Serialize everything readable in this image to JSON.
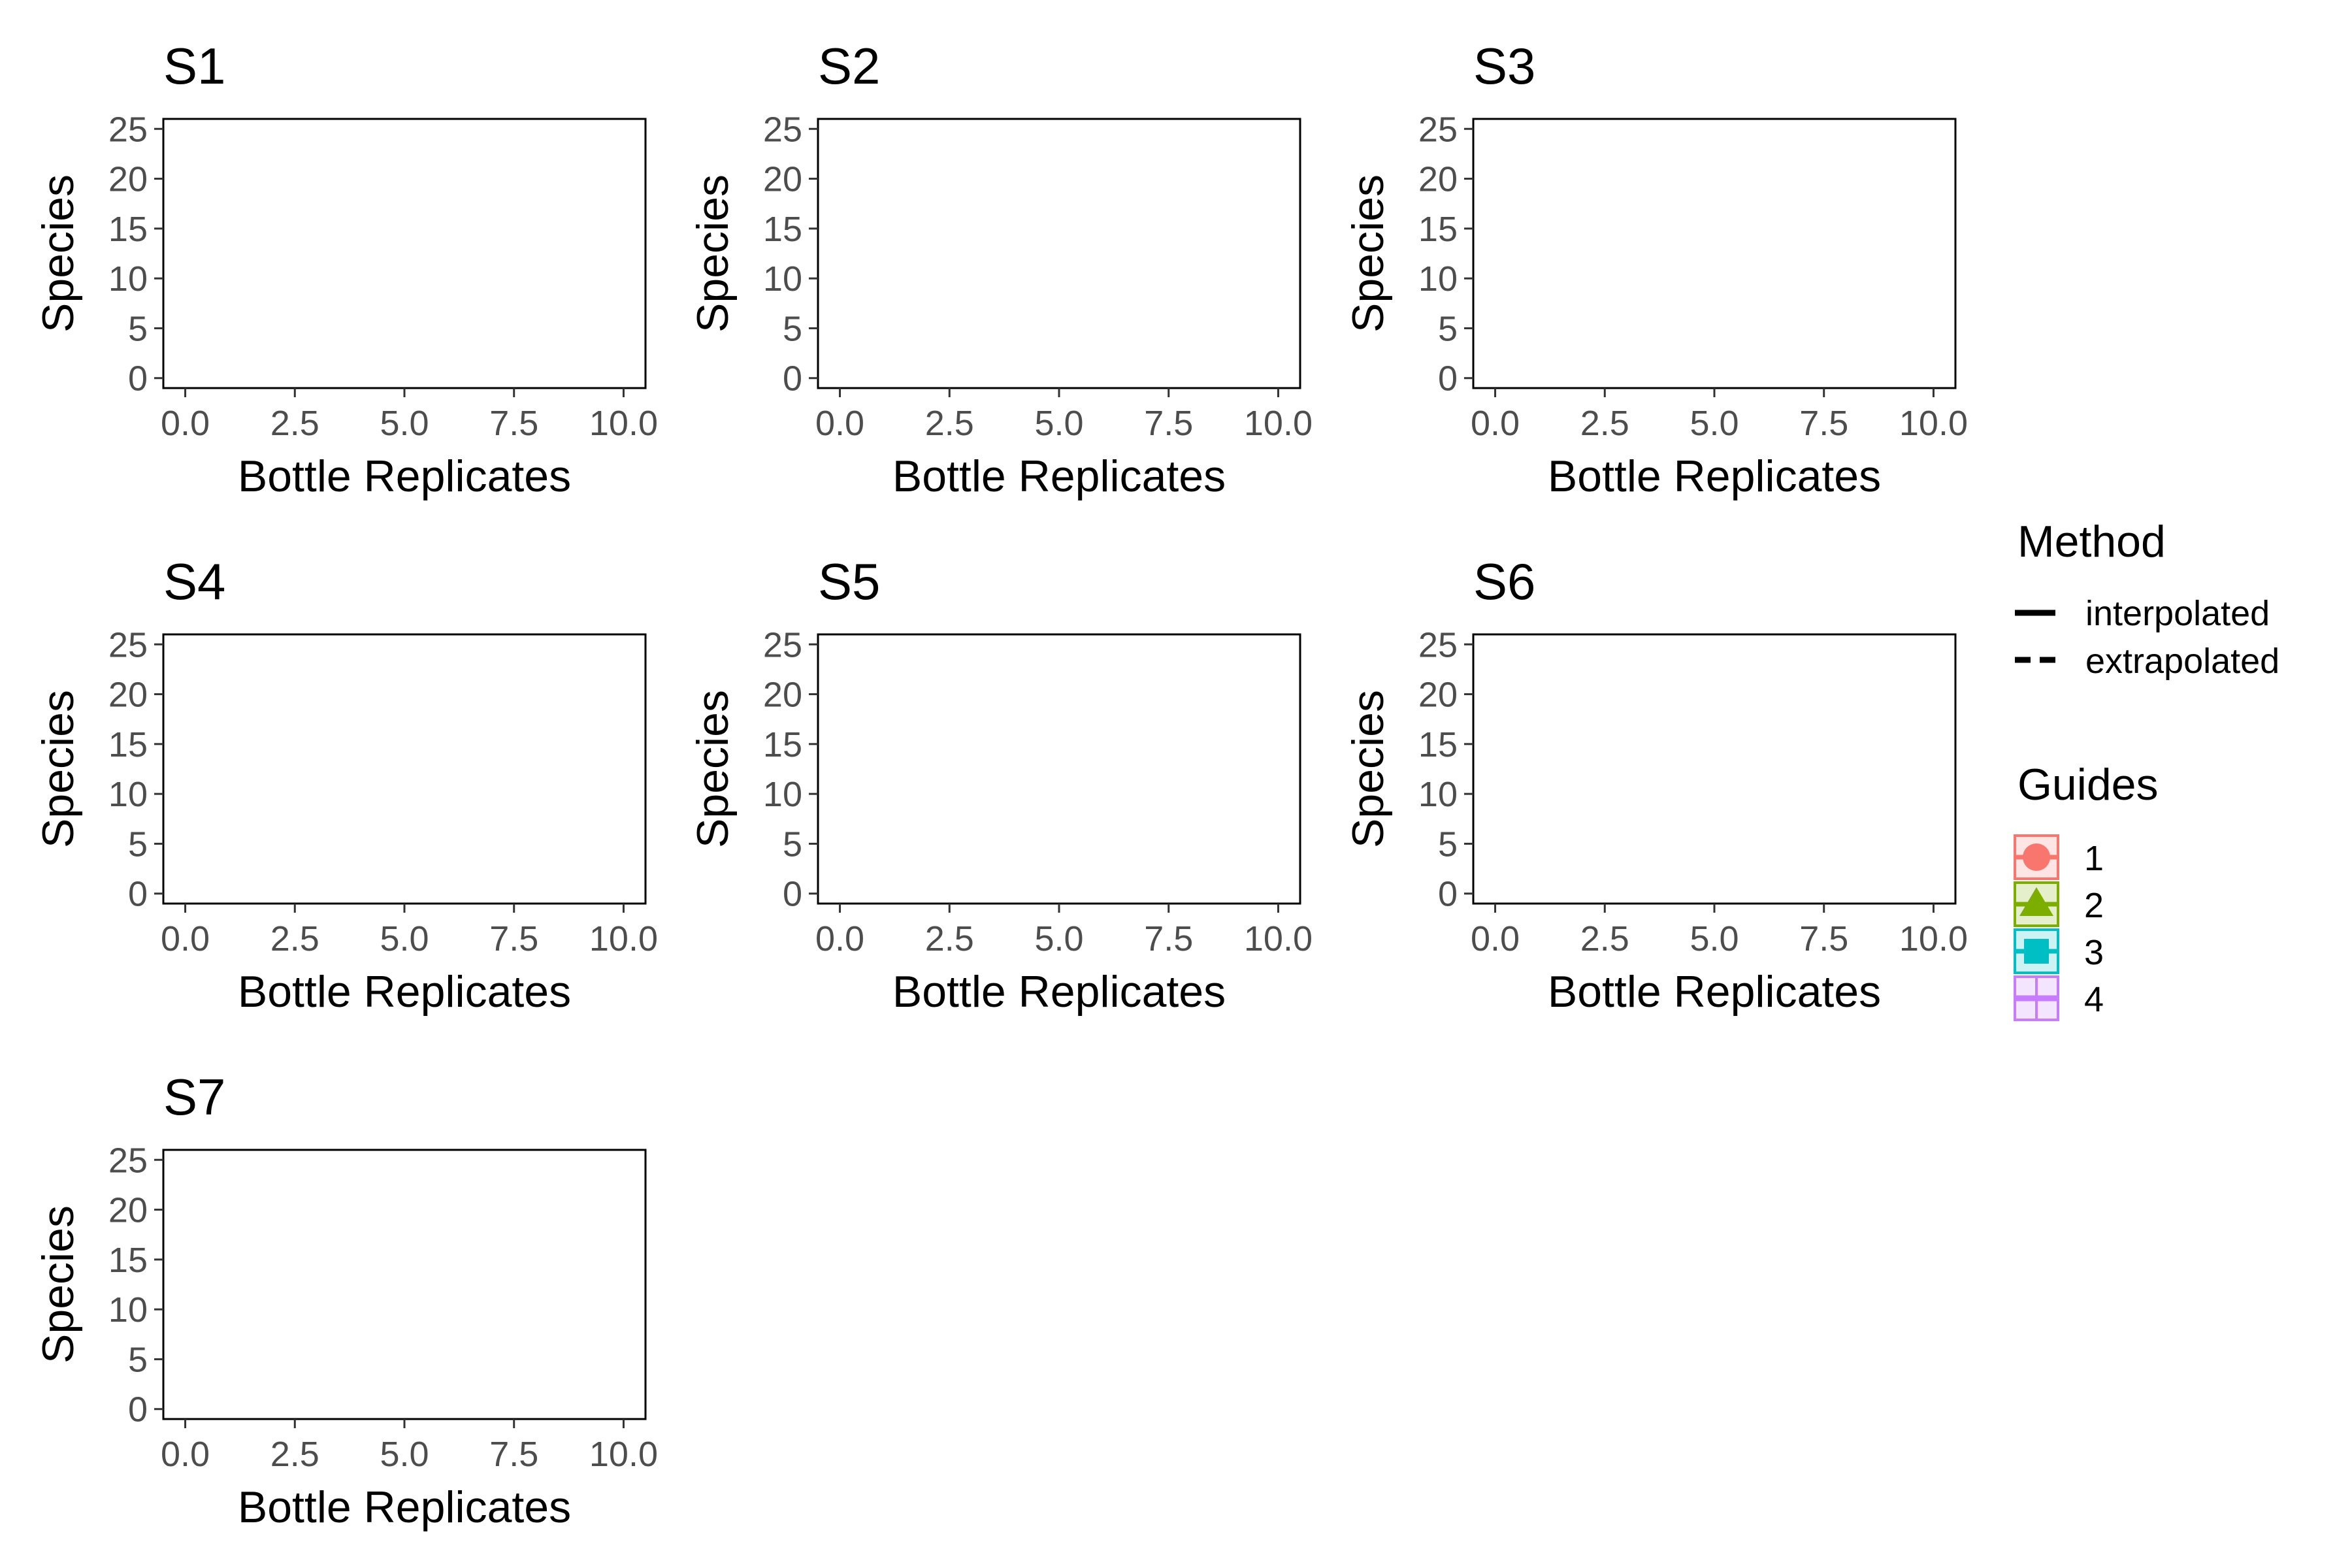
{
  "chart_data": {
    "type": "line",
    "facets": [
      {
        "title": "S1",
        "xlabel": "Bottle Replicates",
        "ylabel": "Species",
        "xlim": [
          -0.5,
          10.5
        ],
        "ylim": [
          -1,
          26
        ],
        "xticks": [
          "0.0",
          "2.5",
          "5.0",
          "7.5",
          "10.0"
        ],
        "yticks": [
          "0",
          "5",
          "10",
          "15",
          "20",
          "25"
        ],
        "series": []
      },
      {
        "title": "S2",
        "xlabel": "Bottle Replicates",
        "ylabel": "Species",
        "xlim": [
          -0.5,
          10.5
        ],
        "ylim": [
          -1,
          26
        ],
        "xticks": [
          "0.0",
          "2.5",
          "5.0",
          "7.5",
          "10.0"
        ],
        "yticks": [
          "0",
          "5",
          "10",
          "15",
          "20",
          "25"
        ],
        "series": []
      },
      {
        "title": "S3",
        "xlabel": "Bottle Replicates",
        "ylabel": "Species",
        "xlim": [
          -0.5,
          10.5
        ],
        "ylim": [
          -1,
          26
        ],
        "xticks": [
          "0.0",
          "2.5",
          "5.0",
          "7.5",
          "10.0"
        ],
        "yticks": [
          "0",
          "5",
          "10",
          "15",
          "20",
          "25"
        ],
        "series": []
      },
      {
        "title": "S4",
        "xlabel": "Bottle Replicates",
        "ylabel": "Species",
        "xlim": [
          -0.5,
          10.5
        ],
        "ylim": [
          -1,
          26
        ],
        "xticks": [
          "0.0",
          "2.5",
          "5.0",
          "7.5",
          "10.0"
        ],
        "yticks": [
          "0",
          "5",
          "10",
          "15",
          "20",
          "25"
        ],
        "series": []
      },
      {
        "title": "S5",
        "xlabel": "Bottle Replicates",
        "ylabel": "Species",
        "xlim": [
          -0.5,
          10.5
        ],
        "ylim": [
          -1,
          26
        ],
        "xticks": [
          "0.0",
          "2.5",
          "5.0",
          "7.5",
          "10.0"
        ],
        "yticks": [
          "0",
          "5",
          "10",
          "15",
          "20",
          "25"
        ],
        "series": []
      },
      {
        "title": "S6",
        "xlabel": "Bottle Replicates",
        "ylabel": "Species",
        "xlim": [
          -0.5,
          10.5
        ],
        "ylim": [
          -1,
          26
        ],
        "xticks": [
          "0.0",
          "2.5",
          "5.0",
          "7.5",
          "10.0"
        ],
        "yticks": [
          "0",
          "5",
          "10",
          "15",
          "20",
          "25"
        ],
        "series": []
      },
      {
        "title": "S7",
        "xlabel": "Bottle Replicates",
        "ylabel": "Species",
        "xlim": [
          -0.5,
          10.5
        ],
        "ylim": [
          -1,
          26
        ],
        "xticks": [
          "0.0",
          "2.5",
          "5.0",
          "7.5",
          "10.0"
        ],
        "yticks": [
          "0",
          "5",
          "10",
          "15",
          "20",
          "25"
        ],
        "series": []
      }
    ],
    "legend": {
      "placement": "right",
      "method": {
        "title": "Method",
        "entries": [
          {
            "label": "interpolated",
            "linetype": "solid"
          },
          {
            "label": "extrapolated",
            "linetype": "dashed"
          }
        ]
      },
      "guides": {
        "title": "Guides",
        "entries": [
          {
            "label": "1",
            "color": "#F8766D",
            "shape": "circle"
          },
          {
            "label": "2",
            "color": "#7CAE00",
            "shape": "triangle"
          },
          {
            "label": "3",
            "color": "#00BFC4",
            "shape": "square"
          },
          {
            "label": "4",
            "color": "#C77CFF",
            "shape": "cross"
          }
        ]
      }
    },
    "grid": false
  }
}
